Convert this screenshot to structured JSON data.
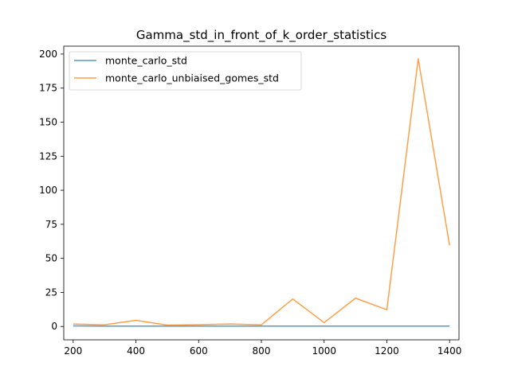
{
  "chart_data": {
    "type": "line",
    "title": "Gamma_std_in_front_of_k_order_statistics",
    "xlabel": "",
    "ylabel": "",
    "xlim": [
      170,
      1430
    ],
    "ylim": [
      -9.8,
      205.8
    ],
    "x_ticks": [
      200,
      400,
      600,
      800,
      1000,
      1200,
      1400
    ],
    "y_ticks": [
      0,
      25,
      50,
      75,
      100,
      125,
      150,
      175,
      200
    ],
    "x": [
      200,
      300,
      400,
      500,
      600,
      700,
      800,
      900,
      1000,
      1100,
      1200,
      1300,
      1400
    ],
    "series": [
      {
        "name": "monte_carlo_std",
        "color": "#1f77b4",
        "values": [
          0.4,
          0.3,
          0.3,
          0.3,
          0.3,
          0.3,
          0.3,
          0.3,
          0.3,
          0.3,
          0.3,
          0.3,
          0.3
        ]
      },
      {
        "name": "monte_carlo_unbiaised_gomes_std",
        "color": "#ff7f0e",
        "values": [
          1.8,
          1.2,
          4.5,
          1.0,
          1.3,
          1.8,
          1.2,
          20.2,
          2.8,
          20.8,
          12.3,
          196.5,
          59.5
        ]
      }
    ],
    "legend_position": "top-left",
    "grid": false
  }
}
